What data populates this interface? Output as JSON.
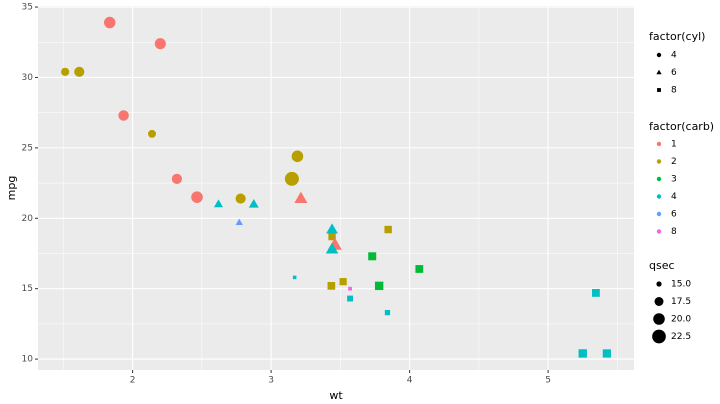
{
  "chart_data": {
    "type": "scatter",
    "x_label": "wt",
    "y_label": "mpg",
    "x": [
      2.62,
      2.875,
      2.32,
      3.215,
      3.44,
      3.46,
      3.57,
      3.19,
      3.15,
      3.44,
      3.44,
      4.07,
      3.73,
      3.78,
      5.25,
      5.424,
      5.345,
      2.2,
      1.615,
      1.835,
      2.465,
      3.52,
      3.435,
      3.84,
      3.845,
      1.935,
      2.14,
      1.513,
      3.17,
      2.77,
      3.57,
      2.78
    ],
    "y": [
      21.0,
      21.0,
      22.8,
      21.4,
      18.7,
      18.1,
      14.3,
      24.4,
      22.8,
      19.2,
      17.8,
      16.4,
      17.3,
      15.2,
      10.4,
      10.4,
      14.7,
      32.4,
      30.4,
      33.9,
      21.5,
      15.5,
      15.2,
      13.3,
      19.2,
      27.3,
      26.0,
      30.4,
      15.8,
      19.7,
      15.0,
      21.4
    ],
    "cyl": [
      "6",
      "6",
      "4",
      "6",
      "8",
      "6",
      "8",
      "4",
      "4",
      "6",
      "6",
      "8",
      "8",
      "8",
      "8",
      "8",
      "8",
      "4",
      "4",
      "4",
      "4",
      "8",
      "8",
      "8",
      "8",
      "4",
      "4",
      "4",
      "8",
      "6",
      "8",
      "4"
    ],
    "carb": [
      "4",
      "4",
      "1",
      "1",
      "2",
      "1",
      "4",
      "2",
      "2",
      "4",
      "4",
      "3",
      "3",
      "3",
      "4",
      "4",
      "4",
      "1",
      "2",
      "1",
      "1",
      "2",
      "2",
      "4",
      "2",
      "1",
      "2",
      "2",
      "4",
      "6",
      "8",
      "2"
    ],
    "qsec": [
      16.46,
      17.02,
      18.61,
      19.44,
      17.02,
      20.22,
      15.84,
      20.0,
      22.9,
      18.3,
      18.9,
      17.4,
      17.6,
      18.0,
      17.98,
      17.82,
      17.42,
      19.47,
      18.52,
      19.9,
      20.01,
      16.87,
      17.3,
      15.41,
      17.05,
      18.9,
      16.7,
      16.9,
      14.5,
      15.5,
      14.6,
      18.6
    ],
    "xlim": [
      1.317,
      5.62
    ],
    "xticks": [
      2,
      3,
      4,
      5
    ],
    "ylim": [
      9.225,
      35.075
    ],
    "yticks": [
      10,
      15,
      20,
      25,
      30,
      35
    ],
    "grid": true,
    "shape_legend": {
      "title": "factor(cyl)",
      "labels": [
        "4",
        "6",
        "8"
      ],
      "shapes": [
        "circle",
        "triangle",
        "square"
      ]
    },
    "color_legend": {
      "title": "factor(carb)",
      "labels": [
        "1",
        "2",
        "3",
        "4",
        "6",
        "8"
      ],
      "colors": [
        "#F8766D",
        "#B79F00",
        "#00BA38",
        "#00BFC4",
        "#619CFF",
        "#F564E3"
      ]
    },
    "size_legend": {
      "title": "qsec",
      "ticks": [
        {
          "value": 15,
          "label": "15.0"
        },
        17.5,
        {
          "value": 20,
          "label": "20.0"
        },
        22.5
      ]
    }
  }
}
